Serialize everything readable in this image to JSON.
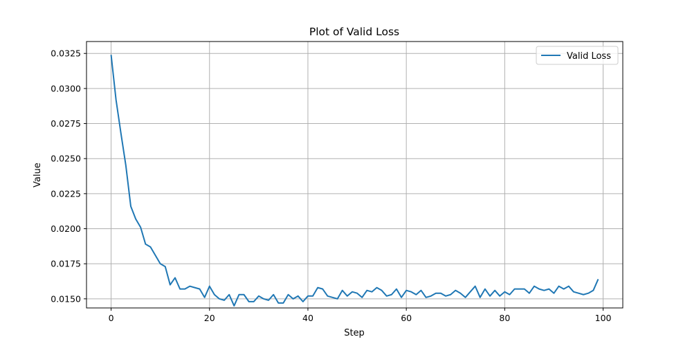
{
  "chart_data": {
    "type": "line",
    "title": "Plot of Valid Loss",
    "xlabel": "Step",
    "ylabel": "Value",
    "xlim": [
      -5,
      104
    ],
    "ylim": [
      0.01435,
      0.03335
    ],
    "xticks": [
      0,
      20,
      40,
      60,
      80,
      100
    ],
    "xtick_labels": [
      "0",
      "20",
      "40",
      "60",
      "80",
      "100"
    ],
    "yticks": [
      0.015,
      0.0175,
      0.02,
      0.0225,
      0.025,
      0.0275,
      0.03,
      0.0325
    ],
    "ytick_labels": [
      "0.0150",
      "0.0175",
      "0.0200",
      "0.0225",
      "0.0250",
      "0.0275",
      "0.0300",
      "0.0325"
    ],
    "grid": true,
    "legend_position": "top-right",
    "colors": {
      "series": "#1f77b4",
      "grid": "#b0b0b0",
      "axes": "#000000"
    },
    "series": [
      {
        "name": "Valid Loss",
        "x": [
          0,
          1,
          2,
          3,
          4,
          5,
          6,
          7,
          8,
          9,
          10,
          11,
          12,
          13,
          14,
          15,
          16,
          17,
          18,
          19,
          20,
          21,
          22,
          23,
          24,
          25,
          26,
          27,
          28,
          29,
          30,
          31,
          32,
          33,
          34,
          35,
          36,
          37,
          38,
          39,
          40,
          41,
          42,
          43,
          44,
          45,
          46,
          47,
          48,
          49,
          50,
          51,
          52,
          53,
          54,
          55,
          56,
          57,
          58,
          59,
          60,
          61,
          62,
          63,
          64,
          65,
          66,
          67,
          68,
          69,
          70,
          71,
          72,
          73,
          74,
          75,
          76,
          77,
          78,
          79,
          80,
          81,
          82,
          83,
          84,
          85,
          86,
          87,
          88,
          89,
          90,
          91,
          92,
          93,
          94,
          95,
          96,
          97,
          98,
          99
        ],
        "values": [
          0.0324,
          0.0292,
          0.0268,
          0.0245,
          0.0216,
          0.0207,
          0.0201,
          0.0189,
          0.0187,
          0.0181,
          0.0175,
          0.0173,
          0.016,
          0.0165,
          0.0157,
          0.0157,
          0.0159,
          0.0158,
          0.0157,
          0.0151,
          0.0159,
          0.0153,
          0.015,
          0.0149,
          0.0153,
          0.0145,
          0.0153,
          0.0153,
          0.0148,
          0.0148,
          0.0152,
          0.015,
          0.0149,
          0.0153,
          0.0147,
          0.0147,
          0.0153,
          0.015,
          0.0152,
          0.0148,
          0.0152,
          0.0152,
          0.0158,
          0.0157,
          0.0152,
          0.0151,
          0.015,
          0.0156,
          0.0152,
          0.0155,
          0.0154,
          0.0151,
          0.0156,
          0.0155,
          0.0158,
          0.0156,
          0.0152,
          0.0153,
          0.0157,
          0.0151,
          0.0156,
          0.0155,
          0.0153,
          0.0156,
          0.0151,
          0.0152,
          0.0154,
          0.0154,
          0.0152,
          0.0153,
          0.0156,
          0.0154,
          0.0151,
          0.0155,
          0.0159,
          0.0151,
          0.0157,
          0.0152,
          0.0156,
          0.0152,
          0.0155,
          0.0153,
          0.0157,
          0.0157,
          0.0157,
          0.0154,
          0.0159,
          0.0157,
          0.0156,
          0.0157,
          0.0154,
          0.0159,
          0.0157,
          0.0159,
          0.0155,
          0.0154,
          0.0153,
          0.0154,
          0.0156,
          0.0164
        ]
      }
    ]
  }
}
